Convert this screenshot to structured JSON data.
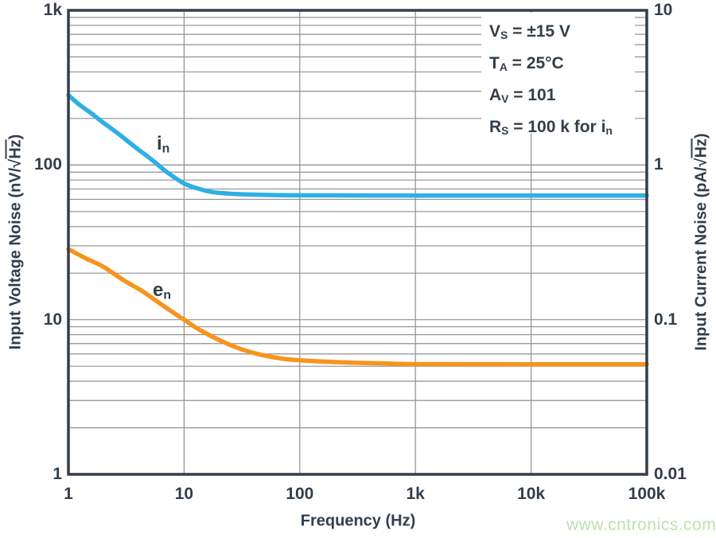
{
  "colors": {
    "axis": "#323e4c",
    "grid": "#8f9093",
    "in_curve": "#2fafe4",
    "en_curve": "#f7941d",
    "watermark": "#bce3ae",
    "background": "#ffffff"
  },
  "conditions": {
    "lines": [
      {
        "sym": "V",
        "sub": "S",
        "rest": " = ±15 V"
      },
      {
        "sym": "T",
        "sub": "A",
        "rest": " = 25°C"
      },
      {
        "sym": "A",
        "sub": "V",
        "rest": " = 101"
      },
      {
        "sym": "R",
        "sub": "S",
        "rest": " = 100 k for ",
        "tail_sym": "i",
        "tail_sub": "n"
      }
    ]
  },
  "curve_labels": {
    "in": {
      "sym": "i",
      "sub": "n"
    },
    "en": {
      "sym": "e",
      "sub": "n"
    }
  },
  "watermark": {
    "text": "www.cntronics.com"
  },
  "chart_data": {
    "type": "line",
    "x_axis": {
      "label": "Frequency (Hz)",
      "scale": "log",
      "min": 1,
      "max": 100000,
      "ticks": [
        {
          "f": 1,
          "label": "1"
        },
        {
          "f": 10,
          "label": "10"
        },
        {
          "f": 100,
          "label": "100"
        },
        {
          "f": 1000,
          "label": "1k"
        },
        {
          "f": 10000,
          "label": "10k"
        },
        {
          "f": 100000,
          "label": "100k"
        }
      ]
    },
    "y_left": {
      "label_pre": "Input Voltage Noise (nV/√",
      "label_overline": "Hz",
      "label_post": ")",
      "scale": "log",
      "min": 1,
      "max": 1000,
      "ticks": [
        {
          "v": 1000,
          "label": "1k"
        },
        {
          "v": 100,
          "label": "100"
        },
        {
          "v": 10,
          "label": "10"
        },
        {
          "v": 1,
          "label": "1"
        }
      ]
    },
    "y_right": {
      "label_pre": "Input Current Noise (pA/√",
      "label_overline": "Hz",
      "label_post": ")",
      "scale": "log",
      "min": 0.01,
      "max": 10,
      "ticks": [
        {
          "v": 10,
          "label": "10"
        },
        {
          "v": 1,
          "label": "1"
        },
        {
          "v": 0.1,
          "label": "0.1"
        },
        {
          "v": 0.01,
          "label": "0.01"
        }
      ]
    },
    "grid": {
      "horizontal_minors": true,
      "vertical_minors": false
    },
    "series": [
      {
        "name": "in",
        "axis": "right",
        "unit": "pA/√Hz",
        "points": [
          [
            1,
            2.83
          ],
          [
            1.25,
            2.45
          ],
          [
            1.6,
            2.14
          ],
          [
            2,
            1.88
          ],
          [
            2.8,
            1.56
          ],
          [
            3.8,
            1.3
          ],
          [
            5.2,
            1.09
          ],
          [
            7.1,
            0.9
          ],
          [
            10,
            0.76
          ],
          [
            13.5,
            0.7
          ],
          [
            18.5,
            0.665
          ],
          [
            30,
            0.648
          ],
          [
            56,
            0.64
          ],
          [
            100,
            0.637
          ],
          [
            1000,
            0.635
          ],
          [
            10000,
            0.635
          ],
          [
            100000,
            0.635
          ]
        ]
      },
      {
        "name": "en",
        "axis": "left",
        "unit": "nV/√Hz",
        "points": [
          [
            1,
            28.6
          ],
          [
            1.4,
            25.0
          ],
          [
            2,
            22.0
          ],
          [
            3,
            18.0
          ],
          [
            4.4,
            15.2
          ],
          [
            6.5,
            12.4
          ],
          [
            10,
            10.0
          ],
          [
            14,
            8.5
          ],
          [
            21.6,
            7.2
          ],
          [
            32,
            6.4
          ],
          [
            47.6,
            5.9
          ],
          [
            70,
            5.6
          ],
          [
            105,
            5.45
          ],
          [
            230,
            5.3
          ],
          [
            500,
            5.22
          ],
          [
            1000,
            5.16
          ],
          [
            10000,
            5.15
          ],
          [
            100000,
            5.15
          ]
        ]
      }
    ]
  }
}
